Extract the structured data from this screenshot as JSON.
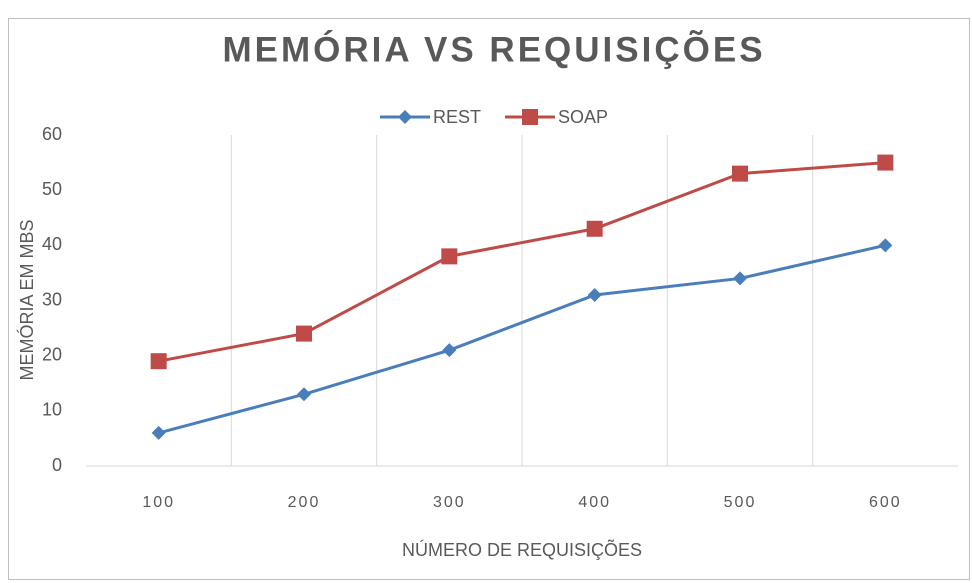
{
  "chart_data": {
    "type": "line",
    "title": "MEMÓRIA VS REQUISIÇÕES",
    "x_label": "NÚMERO DE REQUISIÇÕES",
    "y_label": "MEMÓRIA EM MBS",
    "categories": [
      "100",
      "200",
      "300",
      "400",
      "500",
      "600"
    ],
    "series": [
      {
        "name": "REST",
        "color": "#4a7ebb",
        "marker": "diamond",
        "values": [
          6,
          13,
          21,
          31,
          34,
          40
        ]
      },
      {
        "name": "SOAP",
        "color": "#be4b48",
        "marker": "square",
        "values": [
          19,
          24,
          38,
          43,
          53,
          55
        ]
      }
    ],
    "ylim": [
      0,
      60
    ],
    "yticks": [
      0,
      10,
      20,
      30,
      40,
      50,
      60
    ],
    "grid": "vertical",
    "legend": "top"
  }
}
